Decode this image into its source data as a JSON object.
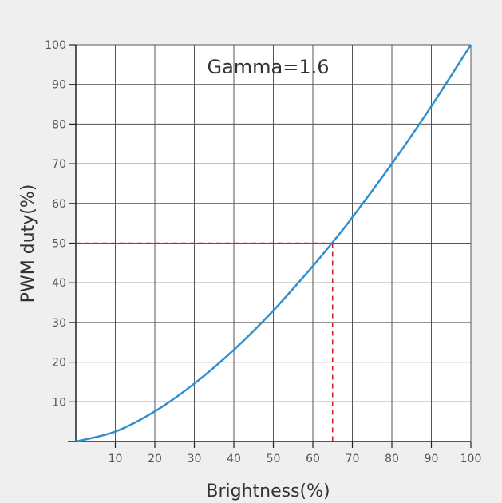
{
  "chart_data": {
    "type": "line",
    "title": "",
    "annotation": "Gamma=1.6",
    "xlabel": "Brightness(%)",
    "ylabel": "PWM duty(%)",
    "xlim": [
      0,
      100
    ],
    "ylim": [
      0,
      100
    ],
    "x_ticks": [
      10,
      20,
      30,
      40,
      50,
      60,
      70,
      80,
      90,
      100
    ],
    "y_ticks": [
      10,
      20,
      30,
      40,
      50,
      60,
      70,
      80,
      90,
      100
    ],
    "x_tick_labels": [
      "10",
      "20",
      "30",
      "40",
      "50",
      "60",
      "70",
      "80",
      "90",
      "100"
    ],
    "y_tick_labels": [
      "10",
      "20",
      "30",
      "40",
      "50",
      "60",
      "70",
      "80",
      "90",
      "100"
    ],
    "grid": true,
    "gamma": 1.6,
    "series": [
      {
        "color": "#2f8fcf",
        "x": [
          0,
          10,
          20,
          30,
          40,
          50,
          60,
          65,
          70,
          80,
          90,
          100
        ],
        "y": [
          0,
          2.5,
          7.6,
          14.6,
          23.1,
          33.0,
          44.2,
          50.2,
          56.5,
          70.0,
          84.5,
          100
        ]
      }
    ],
    "reference_point": {
      "x": 65,
      "y": 50,
      "color": "#cc2233",
      "style": "dashed"
    }
  }
}
